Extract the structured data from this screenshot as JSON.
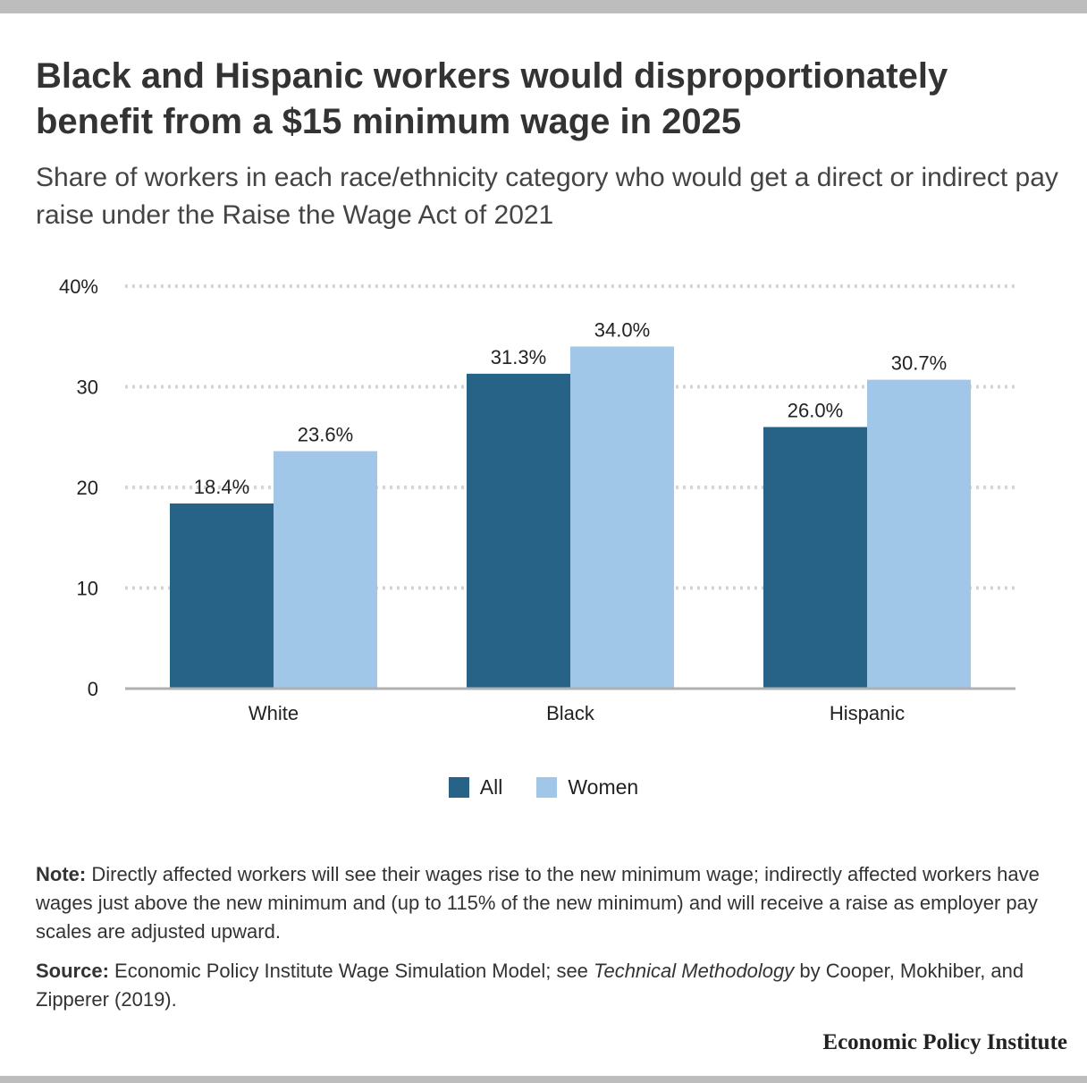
{
  "title": "Black and Hispanic workers would disproportionately benefit from a $15 minimum wage in 2025",
  "subtitle": "Share of workers in each race/ethnicity category who would get a direct or indirect pay raise under the Raise the Wage Act of 2021",
  "colors": {
    "all": "#266386",
    "women": "#a0c6e8",
    "grid": "#d4d4d4",
    "axis": "#b0b0b0"
  },
  "chart_data": {
    "type": "bar",
    "categories": [
      "White",
      "Black",
      "Hispanic"
    ],
    "series": [
      {
        "name": "All",
        "values": [
          18.4,
          31.3,
          26.0
        ],
        "labels": [
          "18.4%",
          "31.3%",
          "26.0%"
        ]
      },
      {
        "name": "Women",
        "values": [
          23.6,
          34.0,
          30.7
        ],
        "labels": [
          "23.6%",
          "34.0%",
          "30.7%"
        ]
      }
    ],
    "ylim": [
      0,
      40
    ],
    "yticks": [
      0,
      10,
      20,
      30,
      40
    ],
    "ytick_labels": [
      "0",
      "10",
      "20",
      "30",
      "40%"
    ],
    "grid": true,
    "legend_position": "bottom-center"
  },
  "legend": {
    "all": "All",
    "women": "Women"
  },
  "note": {
    "label": "Note:",
    "text": "Directly affected workers will see their wages rise to the new minimum wage; indirectly affected workers have wages just above the new minimum and (up to 115% of the new minimum) and will receive a raise as employer pay scales are adjusted upward."
  },
  "source": {
    "label": "Source:",
    "text_before": "Economic Policy Institute Wage Simulation Model; see",
    "italic": "Technical Methodology",
    "text_after": "by Cooper, Mokhiber, and Zipperer (2019)."
  },
  "brand": "Economic Policy Institute"
}
